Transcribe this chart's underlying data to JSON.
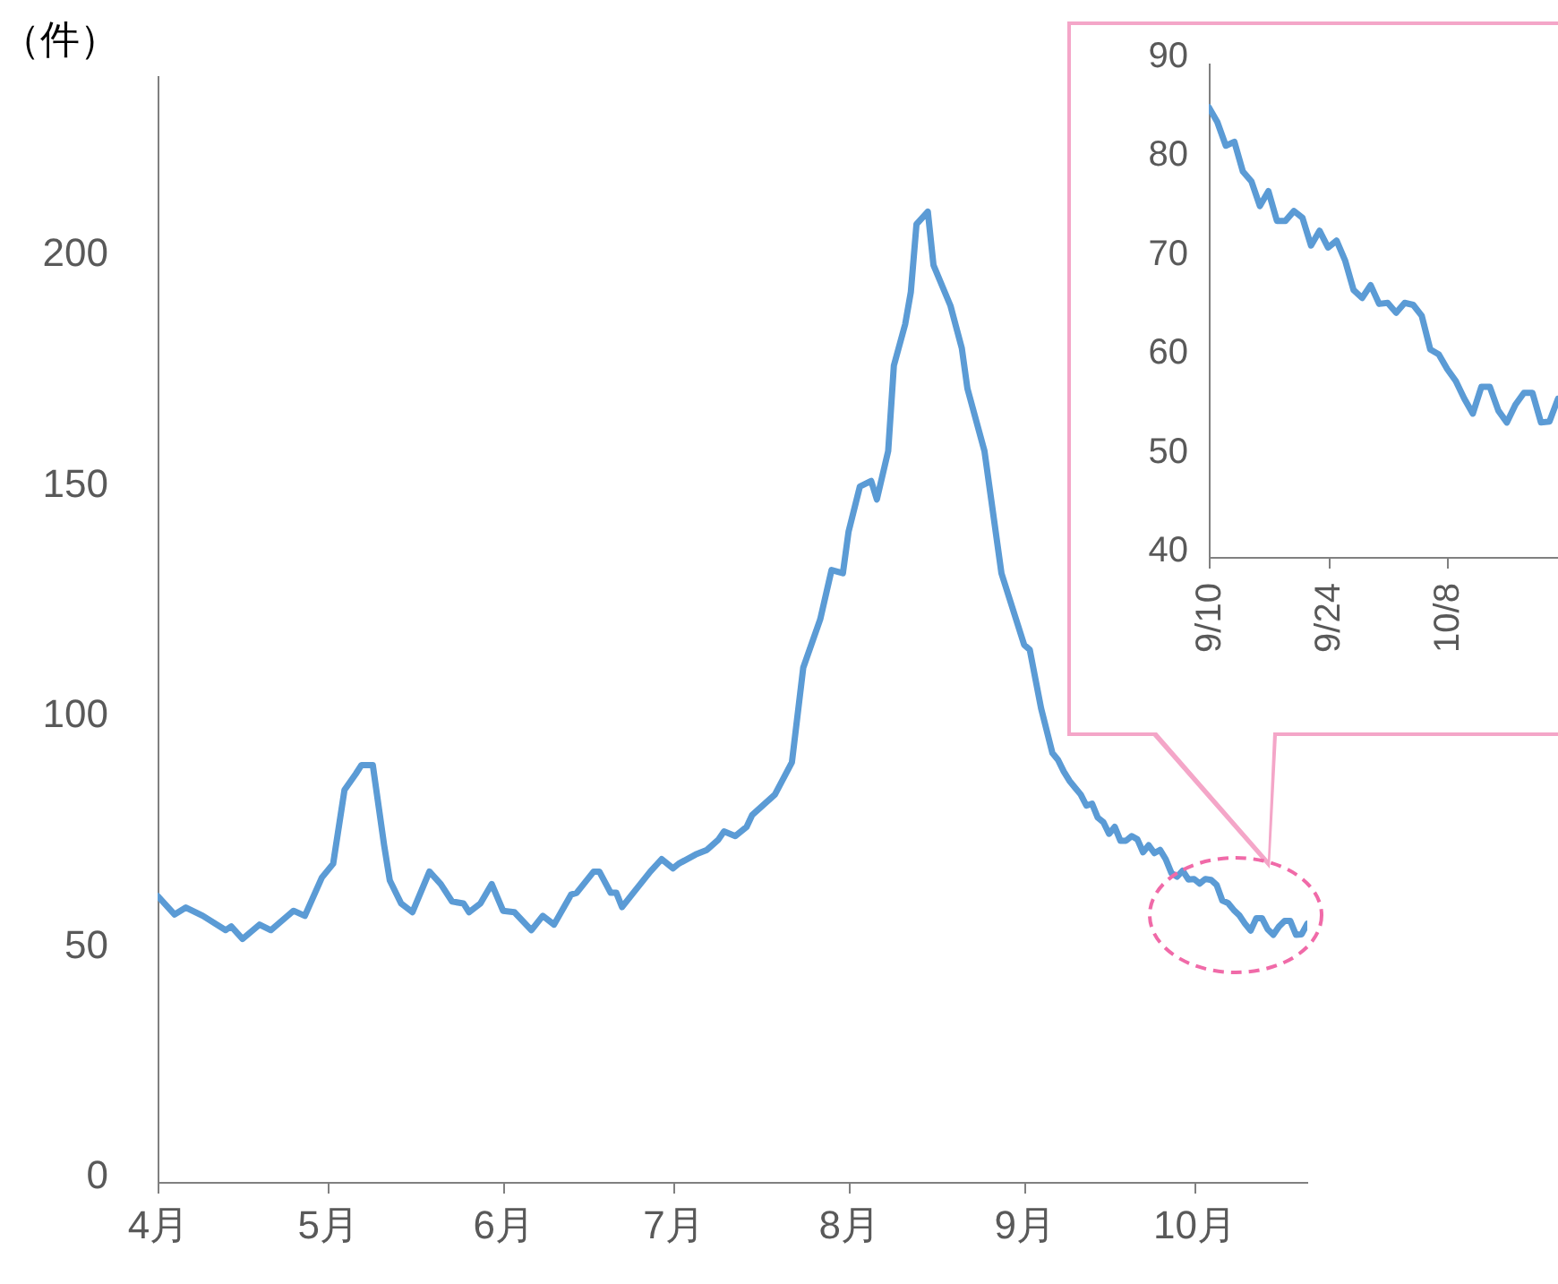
{
  "chart_data": [
    {
      "type": "line",
      "ylabel": "（件）",
      "color": "#5b9bd5",
      "grid": false,
      "xlim": [
        "--04-01",
        "--10-21"
      ],
      "ylim": [
        0,
        240
      ],
      "yticks": [
        0,
        50,
        100,
        150,
        200
      ],
      "xticks": [
        {
          "value": "--04-01",
          "label": "4月"
        },
        {
          "value": "--05-01",
          "label": "5月"
        },
        {
          "value": "--06-01",
          "label": "6月"
        },
        {
          "value": "--07-01",
          "label": "7月"
        },
        {
          "value": "--08-01",
          "label": "8月"
        },
        {
          "value": "--09-01",
          "label": "9月"
        },
        {
          "value": "--10-01",
          "label": "10月"
        }
      ],
      "x": [
        "--04-01",
        "--04-04",
        "--04-06",
        "--04-09",
        "--04-13",
        "--04-14",
        "--04-16",
        "--04-19",
        "--04-21",
        "--04-25",
        "--04-27",
        "--04-30",
        "--05-02",
        "--05-04",
        "--05-06",
        "--05-07",
        "--05-09",
        "--05-11",
        "--05-12",
        "--05-14",
        "--05-16",
        "--05-19",
        "--05-21",
        "--05-23",
        "--05-25",
        "--05-26",
        "--05-28",
        "--05-30",
        "--06-01",
        "--06-03",
        "--06-06",
        "--06-08",
        "--06-10",
        "--06-13",
        "--06-14",
        "--06-17",
        "--06-18",
        "--06-20",
        "--06-21",
        "--06-22",
        "--06-24",
        "--06-27",
        "--06-29",
        "--07-01",
        "--07-02",
        "--07-05",
        "--07-07",
        "--07-09",
        "--07-10",
        "--07-12",
        "--07-14",
        "--07-15",
        "--07-19",
        "--07-22",
        "--07-24",
        "--07-27",
        "--07-29",
        "--07-31",
        "--08-01",
        "--08-03",
        "--08-05",
        "--08-06",
        "--08-08",
        "--08-09",
        "--08-11",
        "--08-12",
        "--08-13",
        "--08-15",
        "--08-16",
        "--08-19",
        "--08-21",
        "--08-22",
        "--08-25",
        "--08-28",
        "--09-01",
        "--09-02",
        "--09-04",
        "--09-06",
        "--09-07",
        "--09-08",
        "--09-09",
        "--09-10",
        "--09-11",
        "--09-12",
        "--09-13",
        "--09-14",
        "--09-15",
        "--09-16",
        "--09-17",
        "--09-18",
        "--09-19",
        "--09-20",
        "--09-21",
        "--09-22",
        "--09-23",
        "--09-24",
        "--09-25",
        "--09-26",
        "--09-27",
        "--09-28",
        "--09-29",
        "--09-30",
        "--10-01",
        "--10-02",
        "--10-03",
        "--10-04",
        "--10-05",
        "--10-06",
        "--10-07",
        "--10-08",
        "--10-09",
        "--10-10",
        "--10-11",
        "--10-12",
        "--10-13",
        "--10-14",
        "--10-15",
        "--10-16",
        "--10-17",
        "--10-18",
        "--10-19",
        "--10-20",
        "--10-21"
      ],
      "values": [
        62,
        58,
        59.5,
        57.7,
        54.6,
        55.4,
        52.7,
        55.8,
        54.6,
        58.8,
        57.7,
        66,
        69,
        85,
        88.5,
        90.4,
        90.4,
        73,
        65.4,
        60.4,
        58.5,
        67.3,
        64.6,
        60.8,
        60.4,
        58.5,
        60.4,
        64.6,
        58.8,
        58.5,
        54.6,
        57.7,
        55.8,
        62.3,
        62.7,
        67.3,
        67.3,
        62.7,
        62.7,
        59.6,
        62.7,
        67.3,
        70,
        68,
        69,
        71,
        72,
        74.2,
        76,
        75,
        77,
        79.6,
        84,
        91,
        111.5,
        122,
        132.7,
        132,
        141,
        150.8,
        152,
        148,
        158.5,
        177,
        186,
        193,
        207.7,
        210.4,
        198.8,
        190,
        180.8,
        172,
        158.5,
        132,
        116.5,
        115.4,
        102.7,
        93,
        91.5,
        89,
        87,
        85.5,
        84,
        81.6,
        82,
        79,
        78,
        75.5,
        77,
        74,
        74,
        75,
        74.3,
        71.5,
        73,
        71.3,
        72,
        70,
        67,
        66.2,
        67.5,
        65.6,
        65.7,
        64.7,
        65.7,
        65.5,
        64.4,
        61,
        60.5,
        59,
        57.8,
        56,
        54.5,
        57.2,
        57.2,
        54.8,
        53.6,
        55.4,
        56.6,
        56.6,
        53.6,
        53.7,
        56
      ]
    },
    {
      "type": "line",
      "color": "#5b9bd5",
      "grid": false,
      "xlim": [
        "--09-10",
        "--10-21"
      ],
      "ylim": [
        40,
        90
      ],
      "yticks": [
        40,
        50,
        60,
        70,
        80,
        90
      ],
      "xticks": [
        {
          "value": "--09-10",
          "label": "9/10"
        },
        {
          "value": "--09-24",
          "label": "9/24"
        },
        {
          "value": "--10-08",
          "label": "10/8"
        }
      ],
      "x": [
        "--09-10",
        "--09-11",
        "--09-12",
        "--09-13",
        "--09-14",
        "--09-15",
        "--09-16",
        "--09-17",
        "--09-18",
        "--09-19",
        "--09-20",
        "--09-21",
        "--09-22",
        "--09-23",
        "--09-24",
        "--09-25",
        "--09-26",
        "--09-27",
        "--09-28",
        "--09-29",
        "--09-30",
        "--10-01",
        "--10-02",
        "--10-03",
        "--10-04",
        "--10-05",
        "--10-06",
        "--10-07",
        "--10-08",
        "--10-09",
        "--10-10",
        "--10-11",
        "--10-12",
        "--10-13",
        "--10-14",
        "--10-15",
        "--10-16",
        "--10-17",
        "--10-18",
        "--10-19",
        "--10-20",
        "--10-21"
      ],
      "values": [
        85.5,
        84,
        81.6,
        82,
        79,
        78,
        75.5,
        77,
        74,
        74,
        75,
        74.3,
        71.5,
        73,
        71.3,
        72,
        70,
        67,
        66.2,
        67.5,
        65.6,
        65.7,
        64.7,
        65.7,
        65.5,
        64.4,
        61,
        60.5,
        59,
        57.8,
        56,
        54.5,
        57.2,
        57.2,
        54.8,
        53.6,
        55.4,
        56.6,
        56.6,
        53.6,
        53.7,
        56
      ]
    }
  ]
}
